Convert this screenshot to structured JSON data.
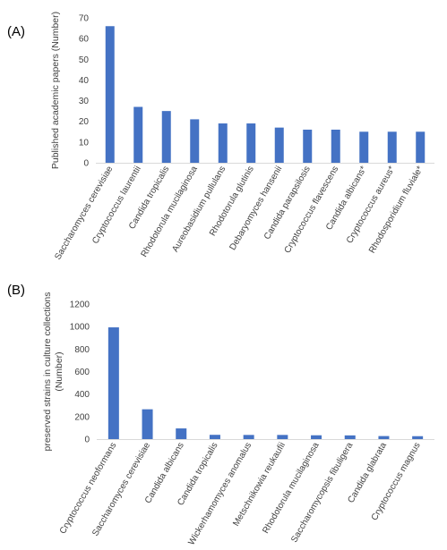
{
  "chart_data": [
    {
      "panel_label": "(A)",
      "type": "bar",
      "ylabel": "Published academic papers (Number)",
      "ylim": [
        0,
        70
      ],
      "yticks": [
        0,
        10,
        20,
        30,
        40,
        50,
        60,
        70
      ],
      "categories": [
        "Saccharomyces cerevisiae",
        "Cryptococcus laurentii",
        "Candida tropicalis",
        "Rhodotorula mucilaginosa",
        "Aureobasidium pullulans",
        "Rhodotorula glutinis",
        "Debaryomyces hansenii",
        "Candida parapsilosis",
        "Cryptococcus flavescens",
        "Candida albicans*",
        "Cryptococcus aureus*",
        "Rhodosporidium fluviale*"
      ],
      "values": [
        66,
        27,
        25,
        21,
        19,
        19,
        17,
        16,
        16,
        15,
        15,
        15
      ],
      "grid": false,
      "bar_color": "#4472C4"
    },
    {
      "panel_label": "(B)",
      "type": "bar",
      "ylabel": "preserved strains in culture collections (Number)",
      "ylabel_lines": [
        "preserved strains in culture collections",
        "(Number)"
      ],
      "ylim": [
        0,
        1200
      ],
      "yticks": [
        0,
        200,
        400,
        600,
        800,
        1000,
        1200
      ],
      "categories": [
        "Cryptococcus neoformans",
        "Saccharomyces cerevisiae",
        "Candida albicans",
        "Candida tropicalis",
        "Wickerhamomyces anomalus",
        "Metschnikowia reukaufii",
        "Rhodotorula mucilaginosa",
        "Saccharomycopsis fibuligera",
        "Candida glabrata",
        "Cryptococcus magnus"
      ],
      "values": [
        993,
        265,
        95,
        38,
        37,
        37,
        34,
        33,
        27,
        26
      ],
      "grid": false,
      "bar_color": "#4472C4"
    }
  ]
}
